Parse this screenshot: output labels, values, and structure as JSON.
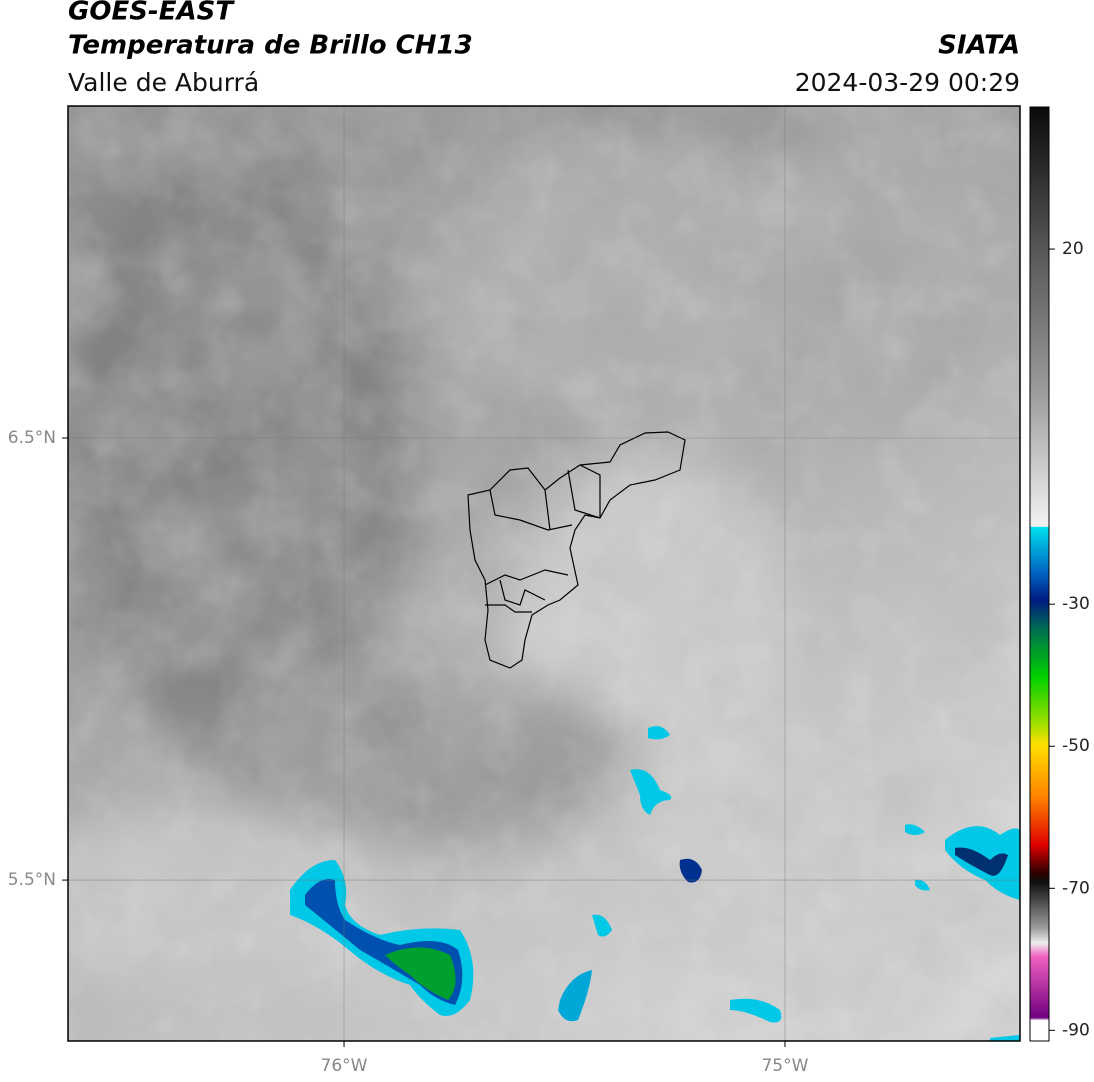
{
  "header": {
    "title": "GOES-EAST",
    "subtitle": "Temperatura de Brillo CH13",
    "region": "Valle de Aburrá",
    "source": "SIATA",
    "datetime": "2024-03-29 00:29"
  },
  "map": {
    "lonlim": [
      -76.626,
      -74.467
    ],
    "latlim": [
      5.136,
      7.251
    ],
    "lonticks": [
      {
        "value": -76,
        "label": "76°W"
      },
      {
        "value": -75,
        "label": "75°W"
      }
    ],
    "latticks": [
      {
        "value": 6.5,
        "label": "6.5°N"
      },
      {
        "value": 5.5,
        "label": "5.5°N"
      }
    ]
  },
  "colorbar": {
    "lim": [
      40,
      -91.5
    ],
    "ticks": [
      20,
      -30,
      -50,
      -70,
      -90
    ]
  }
}
